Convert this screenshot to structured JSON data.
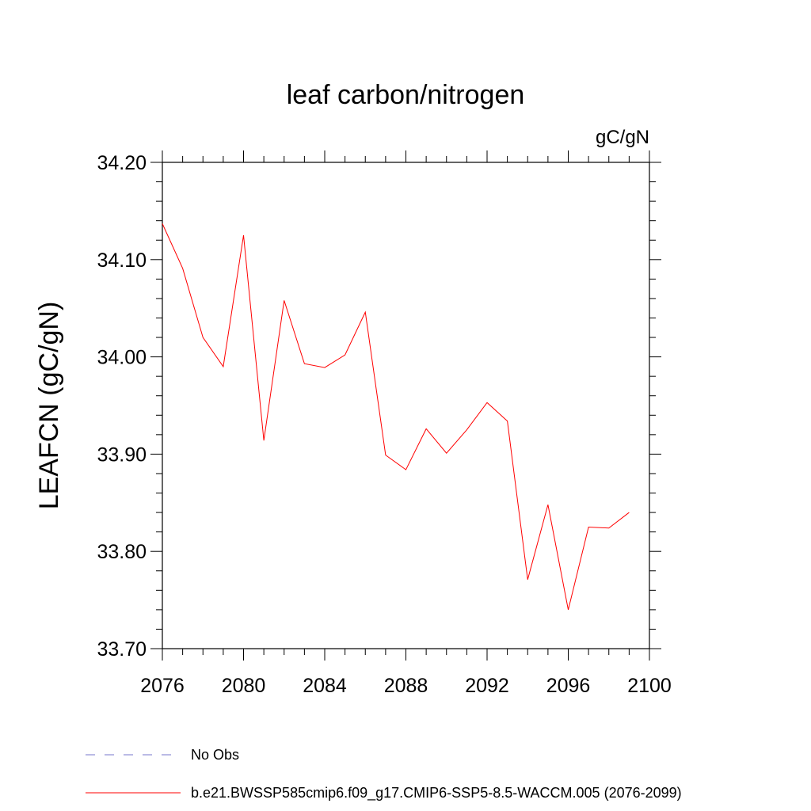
{
  "chart_data": {
    "type": "line",
    "title": "leaf carbon/nitrogen",
    "units_label": "gC/gN",
    "ylabel": "LEAFCN  (gC/gN)",
    "xlabel": "",
    "xlim": [
      2076,
      2100
    ],
    "ylim": [
      33.7,
      34.2
    ],
    "x_ticks": [
      2076,
      2080,
      2084,
      2088,
      2092,
      2096,
      2100
    ],
    "x_tick_labels": [
      "2076",
      "2080",
      "2084",
      "2088",
      "2092",
      "2096",
      "2100"
    ],
    "y_ticks": [
      33.7,
      33.8,
      33.9,
      34.0,
      34.1,
      34.2
    ],
    "y_tick_labels": [
      "33.70",
      "33.80",
      "33.90",
      "34.00",
      "34.10",
      "34.20"
    ],
    "grid": false,
    "series": [
      {
        "name": "b.e21.BWSSP585cmip6.f09_g17.CMIP6-SSP5-8.5-WACCM.005 (2076-2099)",
        "color": "#ff0000",
        "x": [
          2076,
          2077,
          2078,
          2079,
          2080,
          2081,
          2082,
          2083,
          2084,
          2085,
          2086,
          2087,
          2088,
          2089,
          2090,
          2091,
          2092,
          2093,
          2094,
          2095,
          2096,
          2097,
          2098,
          2099
        ],
        "values": [
          34.137,
          34.091,
          34.02,
          33.99,
          34.125,
          33.914,
          34.058,
          33.993,
          33.989,
          34.002,
          34.046,
          33.899,
          33.884,
          33.926,
          33.901,
          33.925,
          33.953,
          33.934,
          33.771,
          33.848,
          33.74,
          33.825,
          33.824,
          33.84
        ]
      }
    ],
    "legend": [
      {
        "label": "No Obs",
        "color": "#7777cc",
        "style": "dashed"
      },
      {
        "label": "b.e21.BWSSP585cmip6.f09_g17.CMIP6-SSP5-8.5-WACCM.005 (2076-2099)",
        "color": "#ff0000",
        "style": "solid"
      }
    ],
    "legend_position": "bottom-left"
  }
}
